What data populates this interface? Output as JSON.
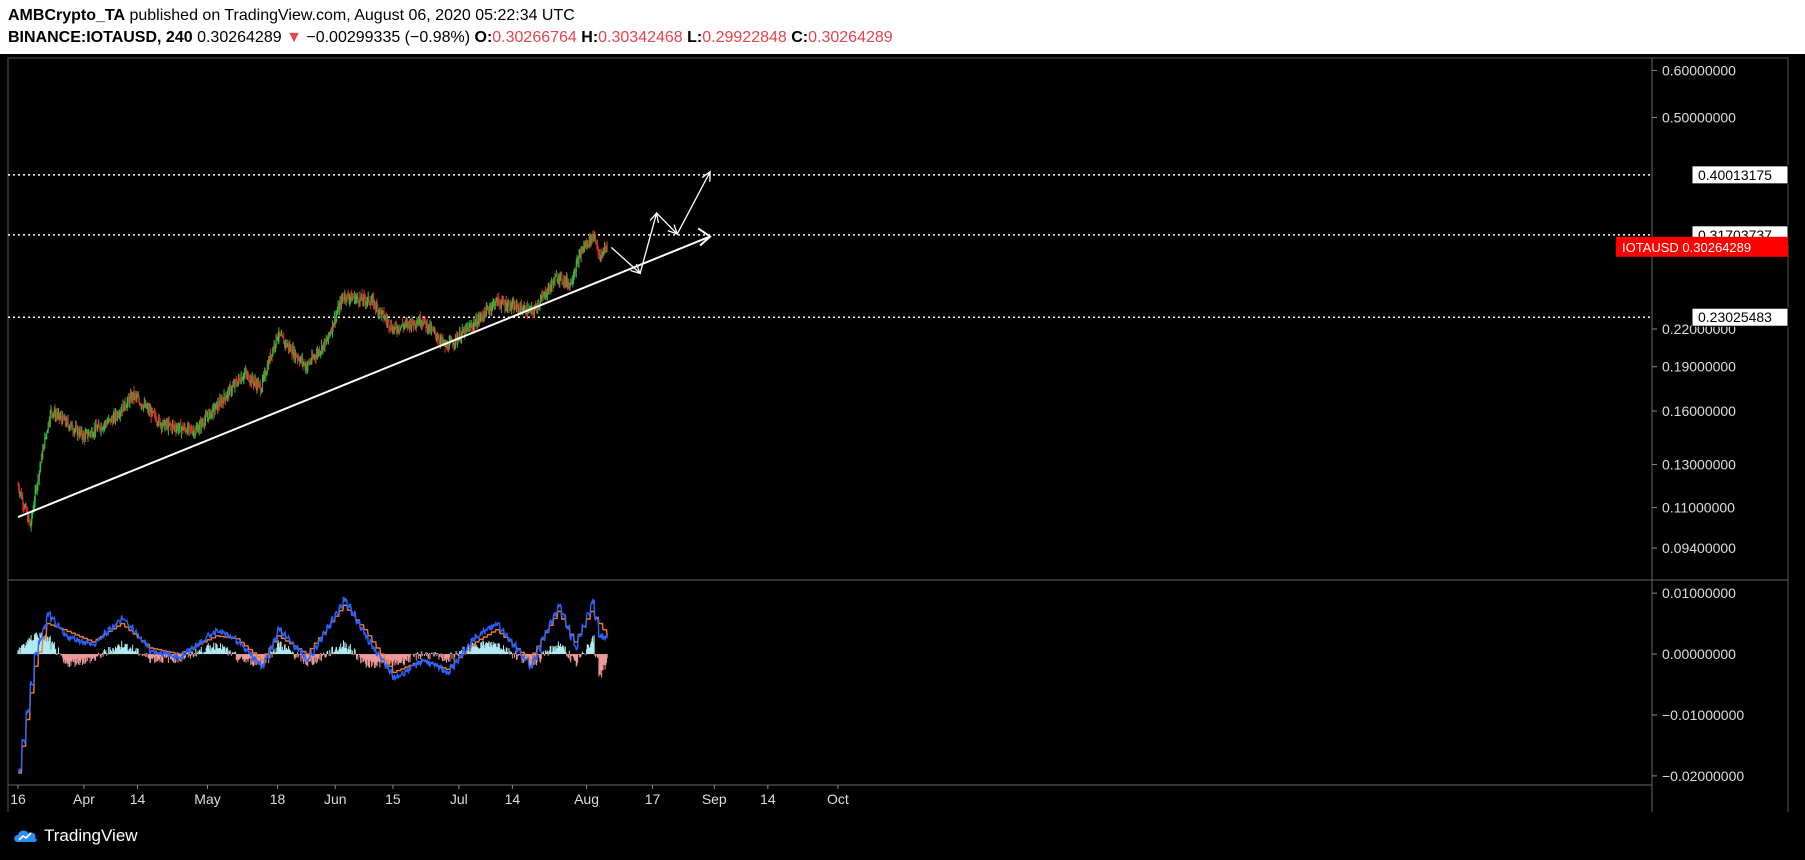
{
  "header": {
    "author": "AMBCrypto_TA",
    "published_text": " published on TradingView.com, August 06, 2020 05:22:34 UTC",
    "symbol": "BINANCE:IOTAUSD, 240",
    "last": "0.30264289",
    "arrow": "▼",
    "change": "−0.00299335 (−0.98%)",
    "o_label": "O:",
    "o_value": "0.30266764",
    "h_label": "H:",
    "h_value": "0.30342468",
    "l_label": "L:",
    "l_value": "0.29922848",
    "c_label": "C:",
    "c_value": "0.30264289"
  },
  "footer": {
    "brand": "TradingView",
    "logo_icon": "tradingview-cloud-icon"
  },
  "colors": {
    "background": "#000000",
    "up": "#2ebd3b",
    "down": "#e0292b",
    "macd": "#2962ff",
    "signal": "#f57c28",
    "hist_up": "#b2ebf2",
    "hist_down": "#ef9a9a",
    "price_badge": "#ff0000",
    "trendline": "#ffffff"
  },
  "chart_data": [
    {
      "type": "candlestick",
      "symbol": "IOTAUSD",
      "scale": "log",
      "ylim": [
        0.085,
        0.62
      ],
      "y_ticks": [
        "0.60000000",
        "0.50000000",
        "0.22000000",
        "0.19000000",
        "0.16000000",
        "0.13000000",
        "0.11000000",
        "0.09400000"
      ],
      "x_ticks": [
        "16",
        "Apr",
        "14",
        "May",
        "18",
        "Jun",
        "15",
        "Jul",
        "14",
        "Aug",
        "17",
        "Sep",
        "14",
        "Oct"
      ],
      "last_price_label": "IOTAUSD",
      "last_price": "0.30264289",
      "horizontal_levels": [
        "0.40013175",
        "0.31703737",
        "0.23025483"
      ],
      "ohlc_waypoints": [
        {
          "date": "2020-03-16",
          "close": 0.12
        },
        {
          "date": "2020-03-19",
          "close": 0.102
        },
        {
          "date": "2020-03-24",
          "close": 0.16
        },
        {
          "date": "2020-04-01",
          "close": 0.145
        },
        {
          "date": "2020-04-08",
          "close": 0.155
        },
        {
          "date": "2020-04-13",
          "close": 0.17
        },
        {
          "date": "2020-04-20",
          "close": 0.152
        },
        {
          "date": "2020-04-28",
          "close": 0.148
        },
        {
          "date": "2020-05-04",
          "close": 0.165
        },
        {
          "date": "2020-05-10",
          "close": 0.185
        },
        {
          "date": "2020-05-14",
          "close": 0.175
        },
        {
          "date": "2020-05-18",
          "close": 0.215
        },
        {
          "date": "2020-05-25",
          "close": 0.19
        },
        {
          "date": "2020-05-30",
          "close": 0.21
        },
        {
          "date": "2020-06-03",
          "close": 0.25
        },
        {
          "date": "2020-06-10",
          "close": 0.245
        },
        {
          "date": "2020-06-15",
          "close": 0.22
        },
        {
          "date": "2020-06-22",
          "close": 0.228
        },
        {
          "date": "2020-06-28",
          "close": 0.205
        },
        {
          "date": "2020-07-05",
          "close": 0.225
        },
        {
          "date": "2020-07-10",
          "close": 0.245
        },
        {
          "date": "2020-07-14",
          "close": 0.24
        },
        {
          "date": "2020-07-19",
          "close": 0.235
        },
        {
          "date": "2020-07-25",
          "close": 0.27
        },
        {
          "date": "2020-07-28",
          "close": 0.262
        },
        {
          "date": "2020-07-31",
          "close": 0.3
        },
        {
          "date": "2020-08-03",
          "close": 0.318
        },
        {
          "date": "2020-08-04",
          "close": 0.29
        },
        {
          "date": "2020-08-06",
          "close": 0.3026
        }
      ],
      "trendline": [
        {
          "date": "2020-03-16",
          "price": 0.106
        },
        {
          "date": "2020-08-31",
          "price": 0.315
        }
      ],
      "projection_path": [
        {
          "date": "2020-08-07",
          "price": 0.302
        },
        {
          "date": "2020-08-14",
          "price": 0.273
        },
        {
          "date": "2020-08-18",
          "price": 0.345
        },
        {
          "date": "2020-08-23",
          "price": 0.318
        },
        {
          "date": "2020-08-31",
          "price": 0.405
        }
      ]
    },
    {
      "type": "line",
      "indicator": "MACD",
      "ylim": [
        -0.021,
        0.0115
      ],
      "y_ticks": [
        "0.01000000",
        "0.00000000",
        "−0.01000000",
        "−0.02000000"
      ],
      "series": [
        {
          "values_waypoints": [
            {
              "date": "2020-03-16",
              "macd": -0.019,
              "signal": -0.0195
            },
            {
              "date": "2020-03-20",
              "macd": 0.0,
              "signal": -0.002
            },
            {
              "date": "2020-03-23",
              "macd": 0.0065,
              "signal": 0.005
            },
            {
              "date": "2020-03-27",
              "macd": 0.003,
              "signal": 0.004
            },
            {
              "date": "2020-04-03",
              "macd": 0.0015,
              "signal": 0.002
            },
            {
              "date": "2020-04-10",
              "macd": 0.006,
              "signal": 0.005
            },
            {
              "date": "2020-04-17",
              "macd": 0.0005,
              "signal": 0.001
            },
            {
              "date": "2020-04-24",
              "macd": -0.0005,
              "signal": 0.0
            },
            {
              "date": "2020-05-03",
              "macd": 0.004,
              "signal": 0.003
            },
            {
              "date": "2020-05-08",
              "macd": 0.002,
              "signal": 0.0025
            },
            {
              "date": "2020-05-14",
              "macd": -0.002,
              "signal": -0.001
            },
            {
              "date": "2020-05-18",
              "macd": 0.004,
              "signal": 0.003
            },
            {
              "date": "2020-05-25",
              "macd": -0.001,
              "signal": 0.0
            },
            {
              "date": "2020-06-03",
              "macd": 0.009,
              "signal": 0.008
            },
            {
              "date": "2020-06-08",
              "macd": 0.003,
              "signal": 0.004
            },
            {
              "date": "2020-06-15",
              "macd": -0.004,
              "signal": -0.003
            },
            {
              "date": "2020-06-22",
              "macd": -0.001,
              "signal": -0.001
            },
            {
              "date": "2020-06-28",
              "macd": -0.003,
              "signal": -0.0025
            },
            {
              "date": "2020-07-05",
              "macd": 0.003,
              "signal": 0.002
            },
            {
              "date": "2020-07-10",
              "macd": 0.005,
              "signal": 0.004
            },
            {
              "date": "2020-07-18",
              "macd": -0.002,
              "signal": -0.001
            },
            {
              "date": "2020-07-25",
              "macd": 0.008,
              "signal": 0.007
            },
            {
              "date": "2020-07-29",
              "macd": 0.001,
              "signal": 0.002
            },
            {
              "date": "2020-08-02",
              "macd": 0.0085,
              "signal": 0.007
            },
            {
              "date": "2020-08-04",
              "macd": 0.003,
              "signal": 0.005
            },
            {
              "date": "2020-08-06",
              "macd": 0.0025,
              "signal": 0.003
            }
          ]
        }
      ]
    }
  ]
}
